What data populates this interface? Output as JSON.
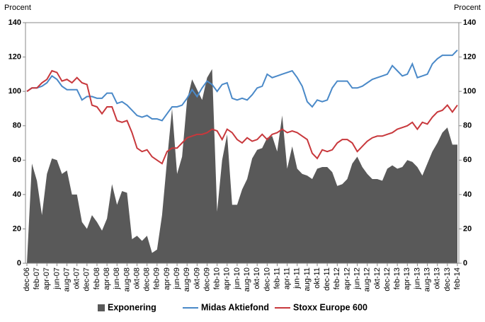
{
  "chart_data": {
    "type": "area_line",
    "y_label": "Procent",
    "y2_label": "Procent",
    "categories": [
      "dec-06",
      null,
      "feb-07",
      null,
      "apr-07",
      null,
      "jun-07",
      null,
      "aug-07",
      null,
      "okt-07",
      null,
      "dec-07",
      null,
      "feb-08",
      null,
      "apr-08",
      null,
      "jun-08",
      null,
      "aug-08",
      null,
      "okt-08",
      null,
      "dec-08",
      null,
      "feb-09",
      null,
      "apr-09",
      null,
      "jun-09",
      null,
      "aug-09",
      null,
      "okt-09",
      null,
      "dec-09",
      null,
      "feb-10",
      null,
      "apr-10",
      null,
      "jun-10",
      null,
      "aug-10",
      null,
      "okt-10",
      null,
      "dec-10",
      null,
      "feb-11",
      null,
      "apr-11",
      null,
      "jun-11",
      null,
      "aug-11",
      null,
      "okt-11",
      null,
      "dec-11",
      null,
      "feb-12",
      null,
      "apr-12",
      null,
      "jun-12",
      null,
      "aug-12",
      null,
      "okt-12",
      null,
      "dec-12",
      null,
      "feb-13",
      null,
      "apr-13",
      null,
      "jun-13",
      null,
      "aug-13",
      null,
      "okt-13",
      null,
      "dec-13",
      null,
      "feb-14"
    ],
    "series": [
      {
        "name": "Exponering",
        "kind": "area",
        "color": "#595959",
        "values": [
          0,
          58,
          48,
          28,
          52,
          61,
          60,
          52,
          54,
          40,
          40,
          24,
          20,
          28,
          24,
          19,
          26,
          46,
          34,
          42,
          41,
          14,
          16,
          13,
          16,
          6,
          8,
          28,
          60,
          90,
          52,
          62,
          95,
          107,
          101,
          95,
          108,
          113,
          30,
          60,
          75,
          34,
          34,
          43,
          49,
          61,
          66,
          67,
          73,
          74,
          65,
          86,
          55,
          68,
          55,
          52,
          51,
          49,
          55,
          56,
          56,
          53,
          45,
          46,
          49,
          58,
          62,
          56,
          52,
          49,
          49,
          48,
          55,
          57,
          55,
          56,
          60,
          59,
          56,
          51,
          58,
          65,
          70,
          76,
          79,
          69,
          69
        ]
      },
      {
        "name": "Midas Aktiefond",
        "kind": "line",
        "color": "#4a89c8",
        "values": [
          100,
          102,
          102,
          103,
          105,
          109,
          107,
          103,
          101,
          101,
          101,
          95,
          97,
          97,
          96,
          96,
          99,
          99,
          93,
          94,
          92,
          89,
          86,
          85,
          86,
          84,
          84,
          83,
          87,
          91,
          91,
          92,
          96,
          101,
          97,
          102,
          106,
          104,
          100,
          104,
          105,
          96,
          95,
          96,
          95,
          98,
          102,
          103,
          110,
          108,
          109,
          110,
          111,
          112,
          108,
          103,
          94,
          91,
          95,
          94,
          95,
          102,
          106,
          106,
          106,
          102,
          102,
          103,
          105,
          107,
          108,
          109,
          110,
          115,
          112,
          109,
          110,
          116,
          108,
          109,
          110,
          116,
          119,
          121,
          121,
          121,
          124
        ]
      },
      {
        "name": "Stoxx Europe 600",
        "kind": "line",
        "color": "#c8383c",
        "values": [
          100,
          102,
          102,
          105,
          107,
          112,
          111,
          106,
          107,
          105,
          108,
          105,
          104,
          92,
          91,
          87,
          91,
          91,
          83,
          82,
          83,
          76,
          67,
          65,
          66,
          62,
          60,
          58,
          65,
          67,
          67,
          70,
          73,
          74,
          75,
          75,
          76,
          78,
          77,
          72,
          78,
          76,
          72,
          70,
          73,
          71,
          72,
          75,
          72,
          75,
          76,
          78,
          76,
          77,
          76,
          74,
          72,
          64,
          61,
          66,
          65,
          66,
          70,
          72,
          72,
          70,
          65,
          68,
          71,
          73,
          74,
          74,
          75,
          76,
          78,
          79,
          80,
          82,
          78,
          82,
          81,
          85,
          88,
          89,
          92,
          88,
          92
        ]
      }
    ],
    "ylim": [
      0,
      140
    ],
    "yticks": [
      0,
      20,
      40,
      60,
      80,
      100,
      120,
      140
    ],
    "y2lim": [
      0,
      140
    ],
    "y2ticks": [
      0,
      20,
      40,
      60,
      80,
      100,
      120,
      140
    ],
    "grid": false,
    "legend": "bottom"
  }
}
